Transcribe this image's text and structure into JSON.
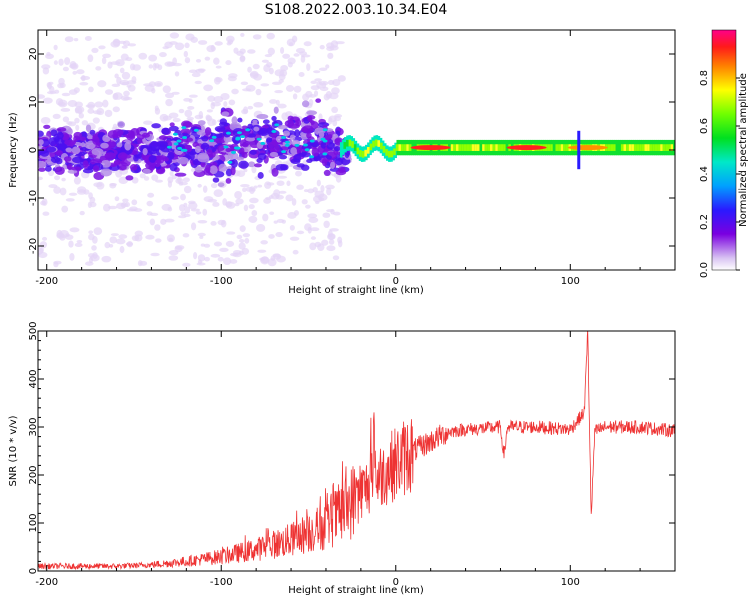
{
  "title": "S108.2022.003.10.34.E04",
  "chart_data": [
    {
      "type": "heatmap",
      "title": "S108.2022.003.10.34.E04",
      "xlabel": "Height of straight line (km)",
      "ylabel": "Frequency (Hz)",
      "xlim": [
        -205,
        160
      ],
      "ylim": [
        -25,
        25
      ],
      "xticks": [
        -200,
        -100,
        0,
        100
      ],
      "yticks": [
        20,
        10,
        0,
        -10,
        -20
      ],
      "colorbar": {
        "label": "Normalized spectral amplitude",
        "range": [
          0,
          1
        ],
        "ticks": [
          "0.0",
          "0.2",
          "0.4",
          "0.6",
          "0.8"
        ]
      },
      "regions": [
        {
          "x_range": [
            -205,
            -30
          ],
          "description_values": {
            "freq_spread_hz": [
              -15,
              15
            ],
            "amplitude": [
              0.05,
              0.3
            ]
          }
        },
        {
          "x_range": [
            -30,
            160
          ],
          "description_values": {
            "center_freq_hz": 0.5,
            "freq_spread_hz": [
              -1.5,
              1.5
            ],
            "amplitude": [
              0.4,
              1.0
            ]
          }
        }
      ],
      "hotspots": [
        {
          "x": 20,
          "amplitude": 0.95
        },
        {
          "x": 75,
          "amplitude": 0.9
        },
        {
          "x": 110,
          "amplitude": 0.85
        }
      ]
    },
    {
      "type": "line",
      "xlabel": "Height of straight line (km)",
      "ylabel": "SNR (10 * v/v)",
      "xlim": [
        -205,
        160
      ],
      "ylim": [
        0,
        500
      ],
      "xticks": [
        -200,
        -100,
        0,
        100
      ],
      "yticks": [
        0,
        100,
        200,
        300,
        400,
        500
      ],
      "color": "#ee3333",
      "envelope": {
        "x": [
          -205,
          -160,
          -140,
          -120,
          -100,
          -80,
          -60,
          -40,
          -30,
          -20,
          -10,
          0,
          10,
          20,
          30,
          40,
          50,
          60,
          62,
          64,
          80,
          100,
          108,
          110,
          112,
          114,
          120,
          140,
          160
        ],
        "y": [
          10,
          10,
          13,
          20,
          30,
          45,
          65,
          95,
          125,
          165,
          195,
          225,
          250,
          270,
          290,
          295,
          297,
          300,
          240,
          300,
          300,
          295,
          330,
          500,
          110,
          290,
          300,
          300,
          292
        ]
      }
    }
  ]
}
